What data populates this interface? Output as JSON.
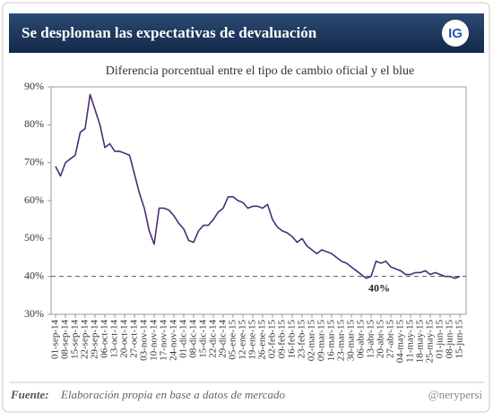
{
  "header": {
    "title": "Se desploman las expectativas de devaluación",
    "logo": "IG"
  },
  "footer": {
    "source_label": "Fuente:",
    "source": "Elaboración propia en base a datos de mercado",
    "credit": "@nerypersi"
  },
  "chart_data": {
    "type": "line",
    "title": "Diferencia porcentual entre el tipo de cambio oficial y el blue",
    "categories": [
      "01-sep-14",
      null,
      "08-sep-14",
      null,
      "15-sep-14",
      null,
      "22-sep-14",
      null,
      "29-sep-14",
      null,
      "06-oct-14",
      null,
      "13-oct-14",
      null,
      "20-oct-14",
      null,
      "27-oct-14",
      null,
      "03-nov-14",
      null,
      "10-nov-14",
      null,
      "17-nov-14",
      null,
      "24-nov-14",
      null,
      "01-dic-14",
      null,
      "08-dic-14",
      null,
      "15-dic-14",
      null,
      "22-dic-14",
      null,
      "29-dic-14",
      null,
      "05-ene-15",
      null,
      "12-ene-15",
      null,
      "19-ene-15",
      null,
      "26-ene-15",
      null,
      "02-feb-15",
      null,
      "09-feb-15",
      null,
      "16-feb-15",
      null,
      "23-feb-15",
      null,
      "02-mar-15",
      null,
      "09-mar-15",
      null,
      "16-mar-15",
      null,
      "23-mar-15",
      null,
      "30-mar-15",
      null,
      "06-abr-15",
      null,
      "13-abr-15",
      null,
      "20-abr-15",
      null,
      "27-abr-15",
      null,
      "04-may-15",
      null,
      "11-may-15",
      null,
      "18-may-15",
      null,
      "25-may-15",
      null,
      "01-jun-15",
      null,
      "08-jun-15",
      null,
      "15-jun-15"
    ],
    "values": [
      69,
      66.5,
      70,
      71,
      72,
      78,
      79,
      88,
      84,
      80,
      74,
      75,
      73,
      73,
      72.5,
      72,
      67,
      62,
      58,
      52,
      48.5,
      58,
      58,
      57.5,
      56,
      54,
      52.5,
      49.5,
      49,
      52,
      53.5,
      53.5,
      55,
      57,
      58,
      61,
      61,
      60,
      59.5,
      58,
      58.5,
      58.5,
      58,
      59,
      55,
      53,
      52,
      51.5,
      50.5,
      49,
      50,
      48,
      47,
      46,
      47,
      46.5,
      46,
      45,
      44,
      43.5,
      42.5,
      41.5,
      40.5,
      39.5,
      40,
      44,
      43.5,
      44,
      42.5,
      42,
      41.5,
      40.5,
      40.5,
      41,
      41,
      41.5,
      40.5,
      41,
      40.5,
      40,
      40,
      39.5,
      40
    ],
    "color": "#4a2d78",
    "ylim": [
      30,
      90
    ],
    "yticks": [
      {
        "value": 30,
        "label": "30%"
      },
      {
        "value": 40,
        "label": "40%"
      },
      {
        "value": 50,
        "label": "50%"
      },
      {
        "value": 60,
        "label": "60%"
      },
      {
        "value": 70,
        "label": "70%"
      },
      {
        "value": 80,
        "label": "80%"
      },
      {
        "value": 90,
        "label": "90%"
      }
    ],
    "grid": false,
    "reference_line": {
      "value": 40,
      "label": "40%"
    }
  }
}
